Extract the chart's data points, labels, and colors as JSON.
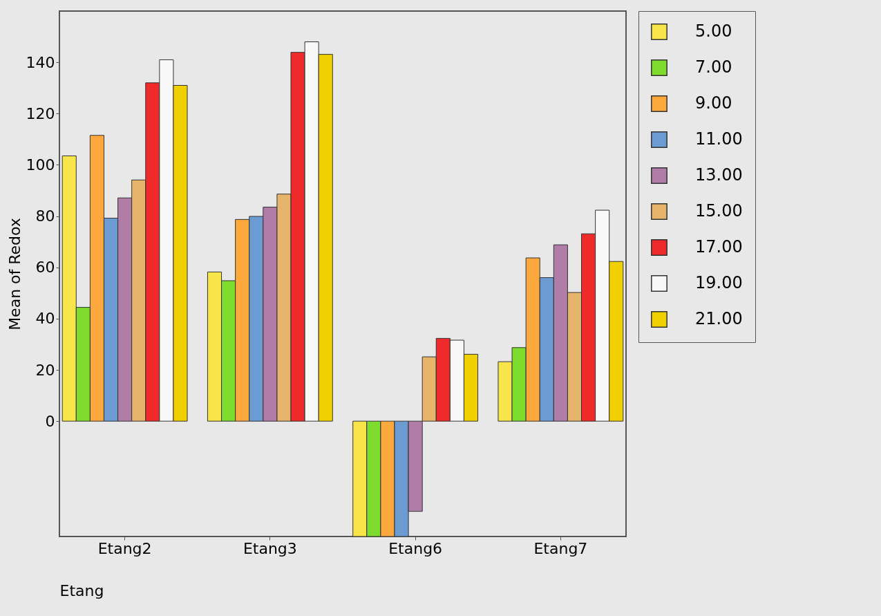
{
  "chart_data": {
    "type": "bar",
    "xlabel": "Etang",
    "ylabel": "Mean of Redox",
    "categories": [
      "Etang2",
      "Etang3",
      "Etang6",
      "Etang7"
    ],
    "series": [
      {
        "name": "5.00",
        "color": "#f7e54a",
        "values": [
          103.5,
          58.2,
          -45,
          23.2
        ]
      },
      {
        "name": "7.00",
        "color": "#7ddc2e",
        "values": [
          44.4,
          54.8,
          -45,
          28.7
        ]
      },
      {
        "name": "9.00",
        "color": "#fca83c",
        "values": [
          111.5,
          78.7,
          -45,
          63.7
        ]
      },
      {
        "name": "11.00",
        "color": "#6b9bd1",
        "values": [
          79.2,
          79.9,
          -45,
          56
        ]
      },
      {
        "name": "13.00",
        "color": "#b07ca8",
        "values": [
          87.1,
          83.5,
          -35.2,
          68.8
        ]
      },
      {
        "name": "15.00",
        "color": "#e6b46b",
        "values": [
          94.1,
          88.6,
          25.1,
          50.2
        ]
      },
      {
        "name": "17.00",
        "color": "#ee2a2a",
        "values": [
          132,
          143.9,
          32.3,
          73.1
        ]
      },
      {
        "name": "19.00",
        "color": "#f8f8f8",
        "values": [
          141,
          148,
          31.6,
          82.3
        ]
      },
      {
        "name": "21.00",
        "color": "#f0d000",
        "values": [
          131,
          143.1,
          26.1,
          62.3
        ]
      }
    ],
    "ylim": [
      -45,
      160
    ],
    "yticks": [
      0,
      20,
      40,
      60,
      80,
      100,
      120,
      140
    ],
    "legend": "right"
  }
}
